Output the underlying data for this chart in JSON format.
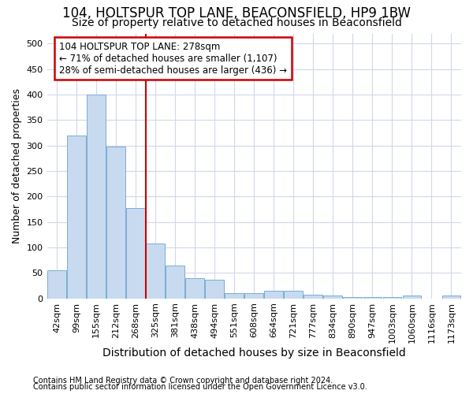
{
  "title_line1": "104, HOLTSPUR TOP LANE, BEACONSFIELD, HP9 1BW",
  "title_line2": "Size of property relative to detached houses in Beaconsfield",
  "xlabel": "Distribution of detached houses by size in Beaconsfield",
  "ylabel": "Number of detached properties",
  "categories": [
    "42sqm",
    "99sqm",
    "155sqm",
    "212sqm",
    "268sqm",
    "325sqm",
    "381sqm",
    "438sqm",
    "494sqm",
    "551sqm",
    "608sqm",
    "664sqm",
    "721sqm",
    "777sqm",
    "834sqm",
    "890sqm",
    "947sqm",
    "1003sqm",
    "1060sqm",
    "1116sqm",
    "1173sqm"
  ],
  "values": [
    55,
    320,
    400,
    298,
    178,
    108,
    65,
    40,
    37,
    10,
    10,
    15,
    15,
    8,
    5,
    2,
    2,
    2,
    5,
    0,
    5
  ],
  "bar_color": "#c8daef",
  "bar_edge_color": "#7aadd4",
  "vline_label": "104 HOLTSPUR TOP LANE: 278sqm",
  "annotation_line1": "← 71% of detached houses are smaller (1,107)",
  "annotation_line2": "28% of semi-detached houses are larger (436) →",
  "annotation_box_facecolor": "#ffffff",
  "annotation_box_edgecolor": "#cc0000",
  "vline_color": "#cc0000",
  "vline_x": 4.5,
  "ylim": [
    0,
    520
  ],
  "yticks": [
    0,
    50,
    100,
    150,
    200,
    250,
    300,
    350,
    400,
    450,
    500
  ],
  "footnote_line1": "Contains HM Land Registry data © Crown copyright and database right 2024.",
  "footnote_line2": "Contains public sector information licensed under the Open Government Licence v3.0.",
  "background_color": "#ffffff",
  "plot_bg_color": "#ffffff",
  "grid_color": "#d0d8e8",
  "title_fontsize": 12,
  "subtitle_fontsize": 10,
  "tick_fontsize": 8,
  "ylabel_fontsize": 9,
  "xlabel_fontsize": 10,
  "footnote_fontsize": 7,
  "annotation_fontsize": 8.5
}
